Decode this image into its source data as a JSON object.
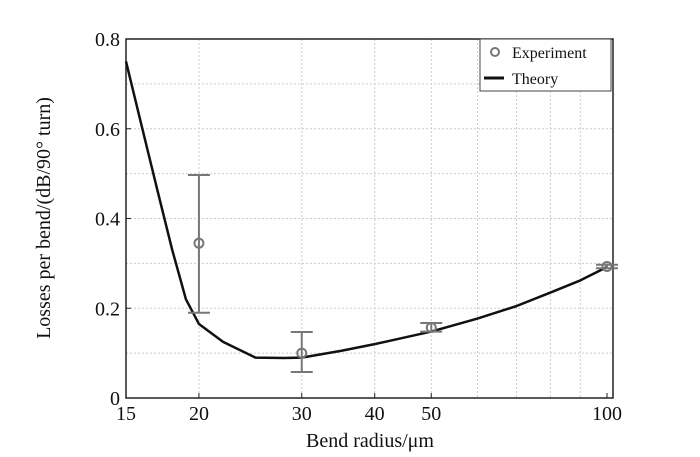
{
  "chart_data": {
    "type": "line",
    "xscale": "log",
    "xlabel": "Bend radius/μm",
    "ylabel": "Losses per bend/(dB/90° turn)",
    "xlim": [
      15,
      100
    ],
    "ylim": [
      0,
      0.8
    ],
    "xticks": [
      15,
      20,
      30,
      40,
      50,
      100
    ],
    "xtick_labels": [
      "15",
      "20",
      "30",
      "40",
      "50",
      "100"
    ],
    "yticks": [
      0,
      0.2,
      0.4,
      0.6,
      0.8
    ],
    "ytick_labels": [
      "0",
      "0.2",
      "0.4",
      "0.6",
      "0.8"
    ],
    "grid": true,
    "legend_position": "top-right",
    "series": [
      {
        "name": "Experiment",
        "kind": "scatter-errorbar",
        "x": [
          20,
          30,
          50,
          100
        ],
        "y": [
          0.345,
          0.1,
          0.157,
          0.293
        ],
        "yerr_low": [
          0.19,
          0.058,
          0.148,
          0.289
        ],
        "yerr_high": [
          0.497,
          0.147,
          0.167,
          0.297
        ],
        "color": "#777777"
      },
      {
        "name": "Theory",
        "kind": "line",
        "x": [
          15,
          16,
          17,
          18,
          19,
          20,
          22,
          25,
          28,
          30,
          35,
          40,
          50,
          60,
          70,
          80,
          90,
          100
        ],
        "y": [
          0.75,
          0.6,
          0.46,
          0.33,
          0.22,
          0.165,
          0.125,
          0.09,
          0.089,
          0.09,
          0.105,
          0.12,
          0.148,
          0.177,
          0.205,
          0.235,
          0.262,
          0.292
        ],
        "color": "#111111"
      }
    ]
  }
}
